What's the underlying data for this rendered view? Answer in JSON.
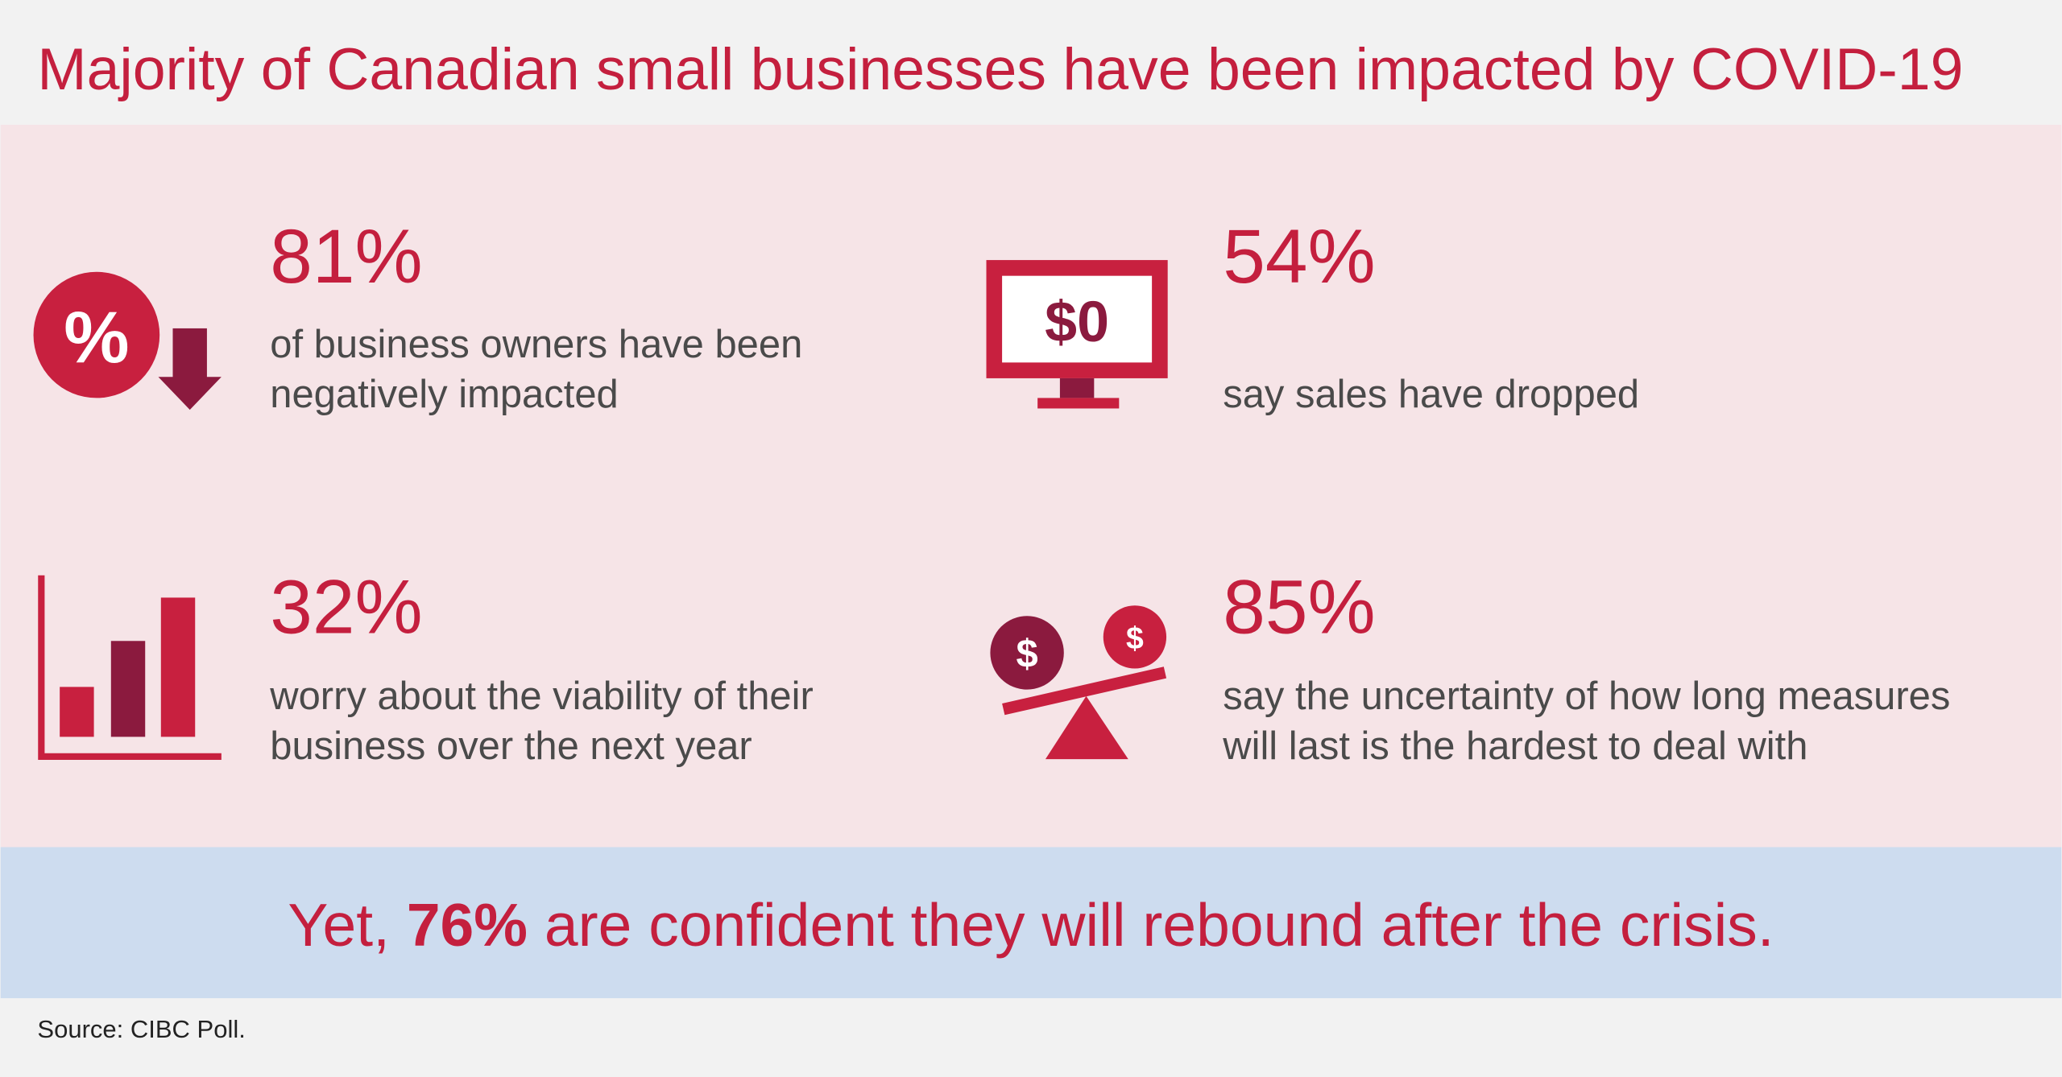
{
  "header": {
    "title": "Majority of Canadian small businesses have been impacted by COVID-19"
  },
  "stats": [
    {
      "value": "81%",
      "lines": [
        "of business owners have been",
        "negatively impacted"
      ]
    },
    {
      "value": "54%",
      "lines": [
        "say sales have dropped"
      ]
    },
    {
      "value": "32%",
      "lines": [
        "worry about the viability of their",
        "business over the next year"
      ]
    },
    {
      "value": "85%",
      "lines": [
        "say the uncertainty of how long measures",
        "will last is the hardest to deal with"
      ]
    }
  ],
  "banner": {
    "before": "Yet, ",
    "highlight": "76%",
    "after": " are confident they will rebound after the crisis."
  },
  "icons": {
    "percent": "%",
    "monitor": "$0",
    "coin_left": "$",
    "coin_right": "$"
  },
  "source": "Source: CIBC Poll."
}
